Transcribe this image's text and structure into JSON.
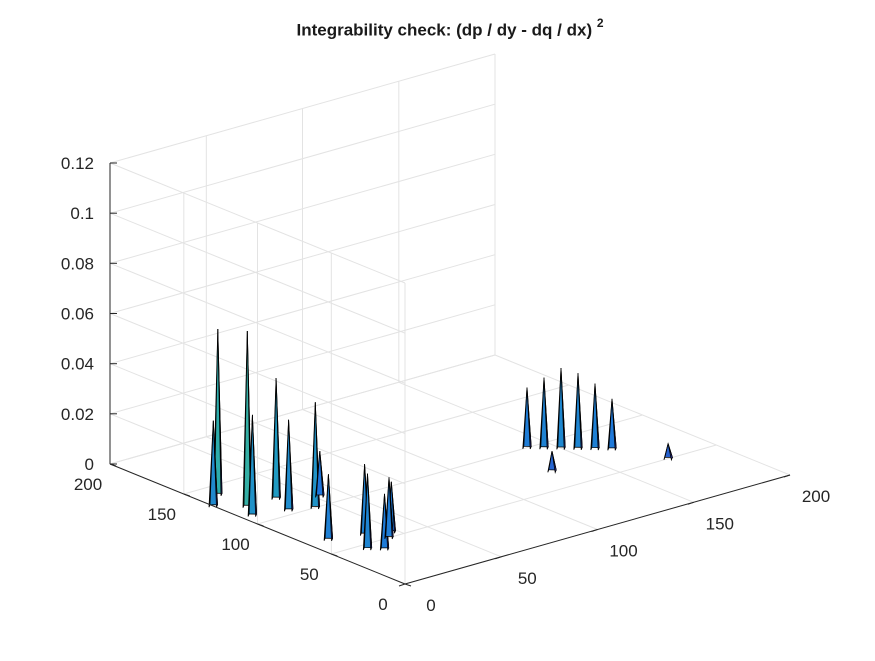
{
  "chart_data": {
    "type": "surface",
    "title": "Integrability check: (dp / dy - dq / dx)",
    "title_superscript": "2",
    "xlabel": "",
    "ylabel": "",
    "zlabel": "",
    "xlim": [
      0,
      200
    ],
    "ylim": [
      0,
      200
    ],
    "zlim": [
      0,
      0.12
    ],
    "x_ticks": [
      "0",
      "50",
      "100",
      "150",
      "200"
    ],
    "y_ticks": [
      "0",
      "50",
      "100",
      "150",
      "200"
    ],
    "z_ticks": [
      "0",
      "0.02",
      "0.04",
      "0.06",
      "0.08",
      "0.1",
      "0.12"
    ],
    "grid": true,
    "colormap": "parula",
    "edge_color": "#000000",
    "peaks": [
      {
        "x": 10,
        "y": 120,
        "z": 0.07
      },
      {
        "x": 10,
        "y": 140,
        "z": 0.066
      },
      {
        "x": 5,
        "y": 110,
        "z": 0.04
      },
      {
        "x": 25,
        "y": 120,
        "z": 0.048
      },
      {
        "x": 30,
        "y": 100,
        "z": 0.042
      },
      {
        "x": 20,
        "y": 105,
        "z": 0.036
      },
      {
        "x": 0,
        "y": 130,
        "z": 0.034
      },
      {
        "x": 40,
        "y": 110,
        "z": 0.018
      },
      {
        "x": 15,
        "y": 45,
        "z": 0.03
      },
      {
        "x": 25,
        "y": 60,
        "z": 0.028
      },
      {
        "x": 10,
        "y": 65,
        "z": 0.026
      },
      {
        "x": 20,
        "y": 40,
        "z": 0.022
      },
      {
        "x": 35,
        "y": 55,
        "z": 0.02
      },
      {
        "x": 30,
        "y": 50,
        "z": 0.024
      },
      {
        "x": 150,
        "y": 90,
        "z": 0.032
      },
      {
        "x": 145,
        "y": 95,
        "z": 0.028
      },
      {
        "x": 155,
        "y": 85,
        "z": 0.03
      },
      {
        "x": 160,
        "y": 80,
        "z": 0.026
      },
      {
        "x": 140,
        "y": 100,
        "z": 0.024
      },
      {
        "x": 165,
        "y": 75,
        "z": 0.02
      },
      {
        "x": 130,
        "y": 70,
        "z": 0.008
      },
      {
        "x": 175,
        "y": 50,
        "z": 0.006
      }
    ]
  }
}
